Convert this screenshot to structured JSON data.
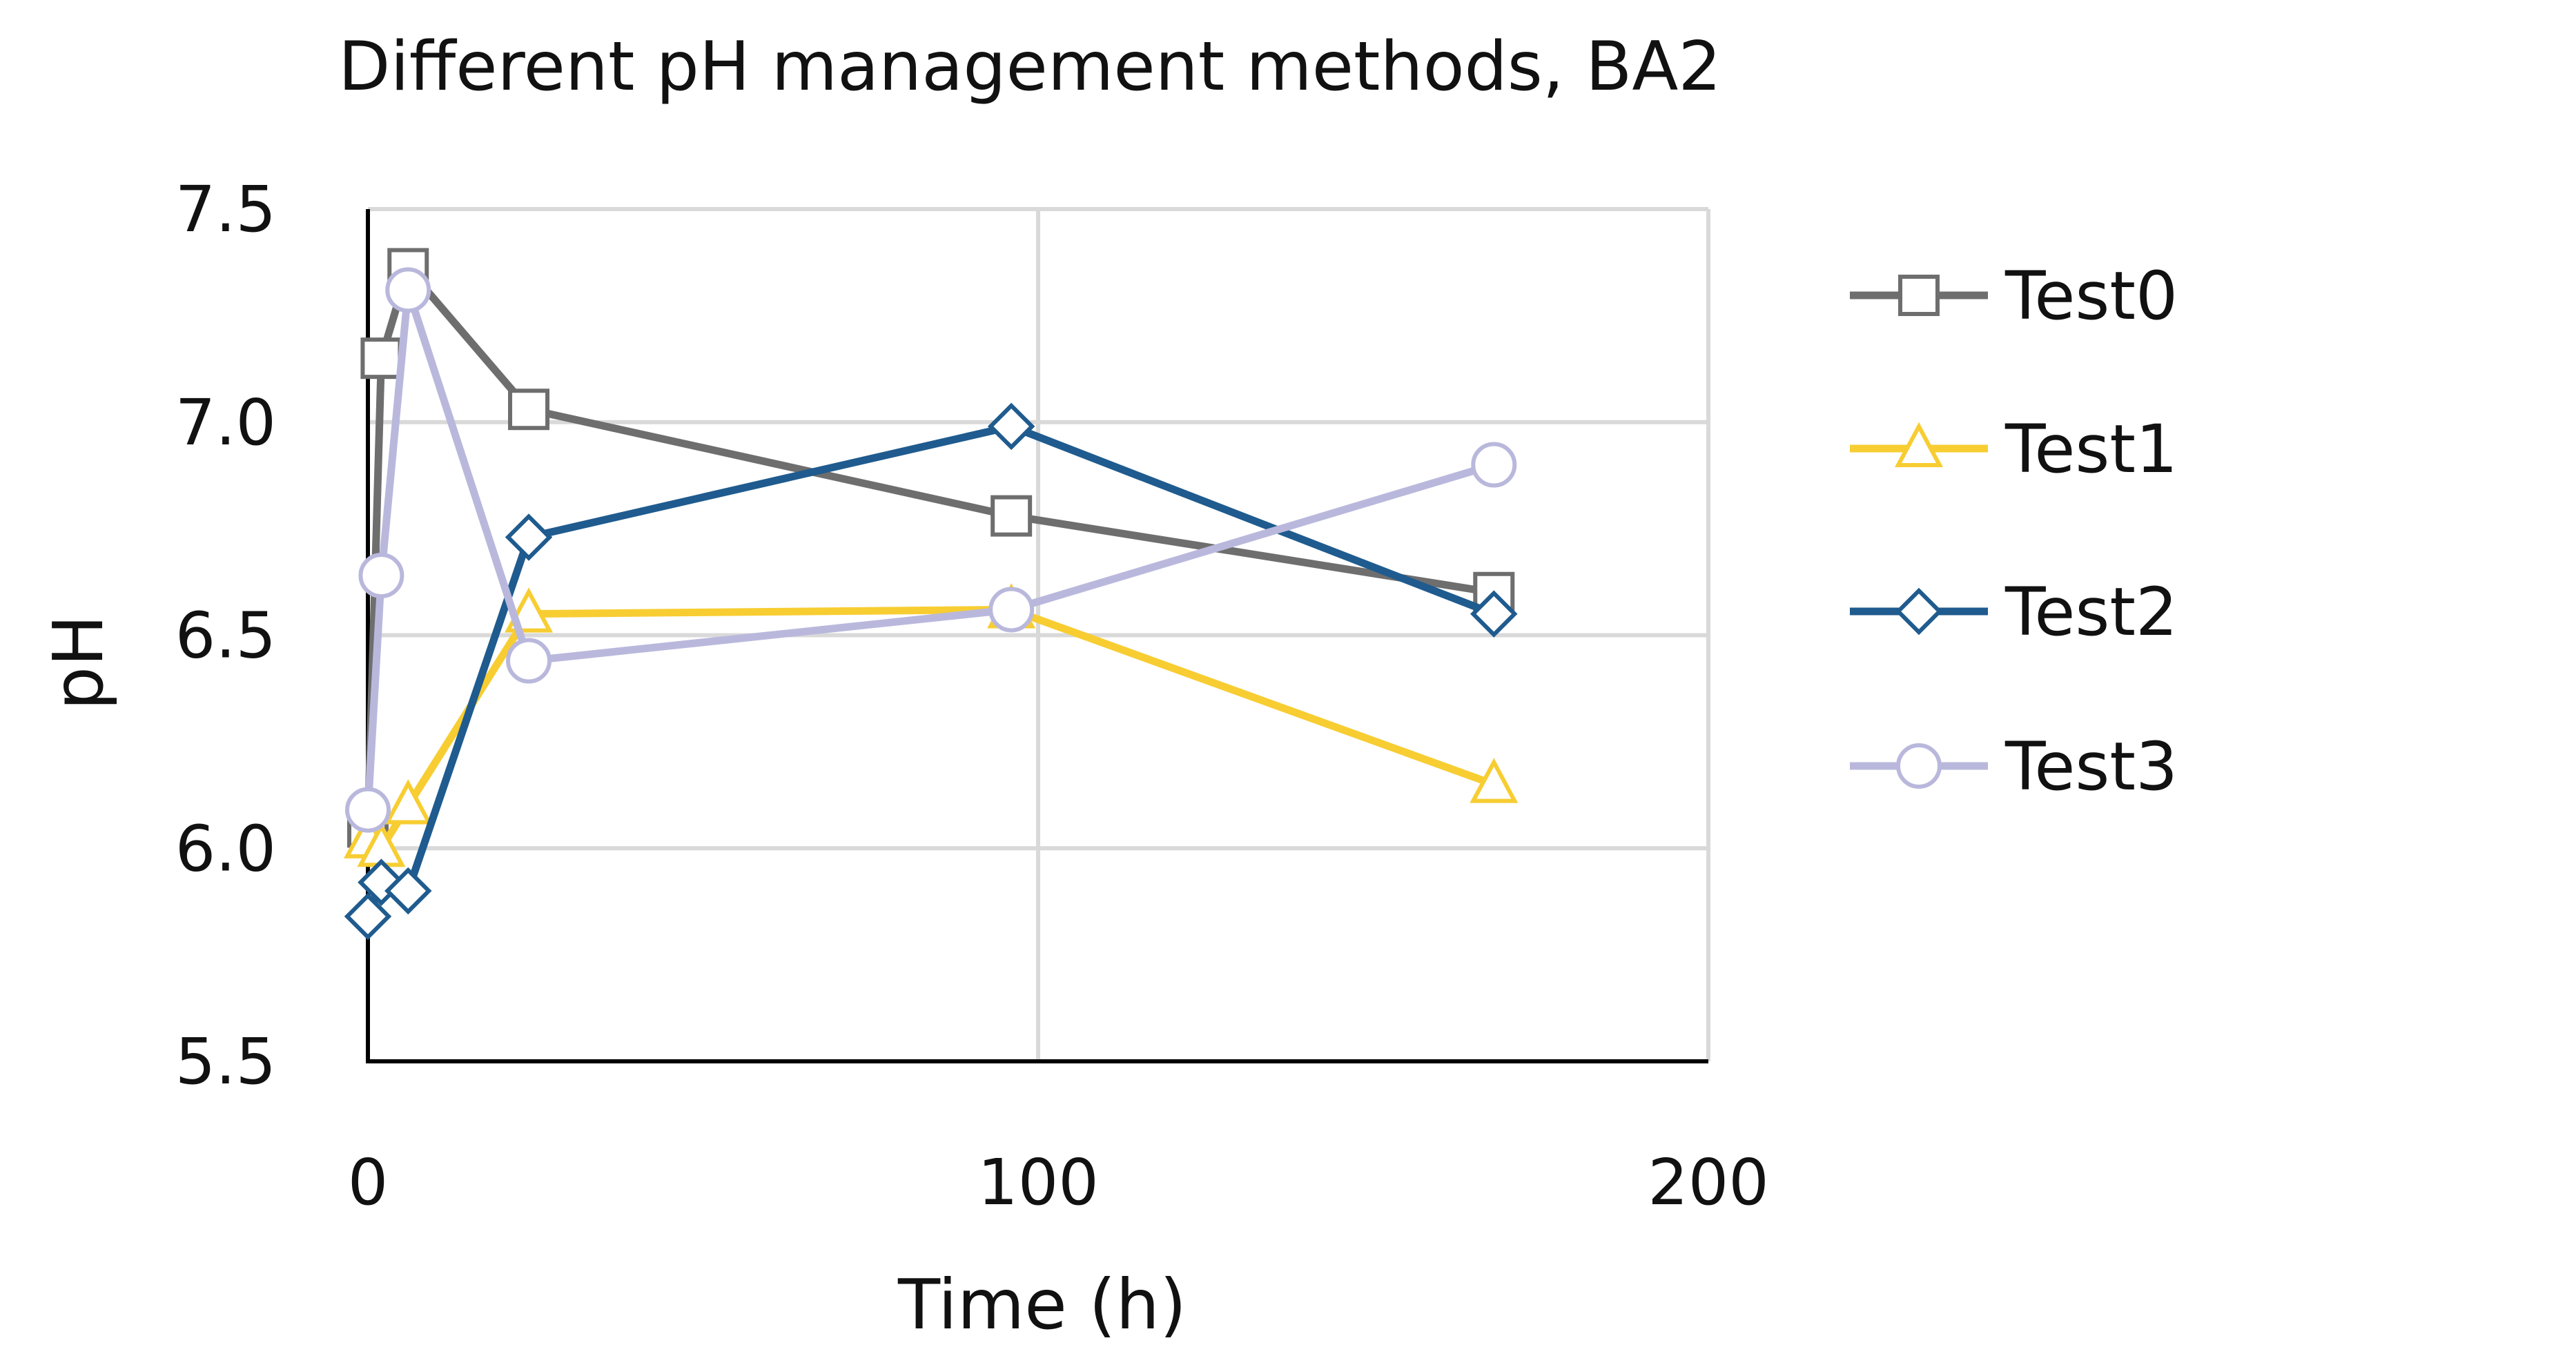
{
  "chart_data": {
    "type": "line",
    "title": "Different pH management methods, BA2",
    "xlabel": "Time (h)",
    "ylabel": "pH",
    "xlim": [
      0,
      200
    ],
    "ylim": [
      5.5,
      7.5
    ],
    "xticks": [
      0,
      100,
      200
    ],
    "yticks": [
      "5.5",
      "6.0",
      "6.5",
      "7.0",
      "7.5"
    ],
    "grid": true,
    "legend_position": "right",
    "series": [
      {
        "name": "Test0",
        "color": "#6e6e6e",
        "marker": "square",
        "x": [
          0,
          2,
          6,
          24,
          96,
          168
        ],
        "y": [
          6.05,
          7.15,
          7.36,
          7.03,
          6.78,
          6.6
        ]
      },
      {
        "name": "Test1",
        "color": "#f7cd32",
        "marker": "triangle",
        "x": [
          0,
          2,
          6,
          24,
          96,
          168
        ],
        "y": [
          6.02,
          6.0,
          6.1,
          6.55,
          6.56,
          6.15
        ]
      },
      {
        "name": "Test2",
        "color": "#1f5b8e",
        "marker": "diamond",
        "x": [
          0,
          2,
          6,
          24,
          96,
          168
        ],
        "y": [
          5.84,
          5.92,
          5.9,
          6.73,
          6.99,
          6.55
        ]
      },
      {
        "name": "Test3",
        "color": "#b9b8dc",
        "marker": "circle",
        "x": [
          0,
          2,
          6,
          24,
          96,
          168
        ],
        "y": [
          6.09,
          6.64,
          7.31,
          6.44,
          6.56,
          6.9
        ]
      }
    ]
  }
}
